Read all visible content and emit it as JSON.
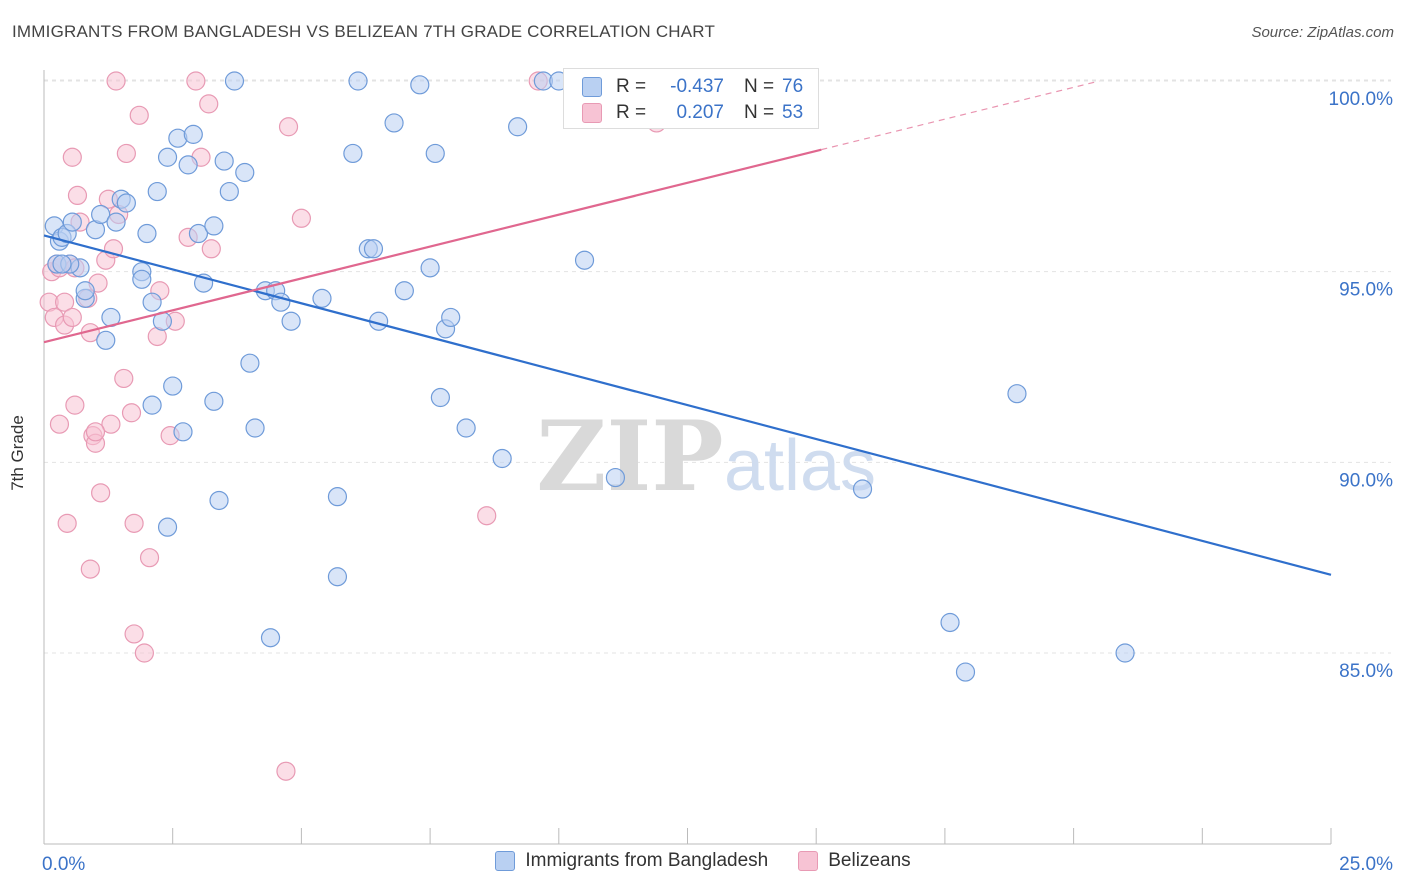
{
  "title": "IMMIGRANTS FROM BANGLADESH VS BELIZEAN 7TH GRADE CORRELATION CHART",
  "source": "Source: ZipAtlas.com",
  "watermark": {
    "zip": "ZIP",
    "atlas": "atlas"
  },
  "colors": {
    "blue_fill": "#b9d0f2",
    "blue_stroke": "#6f9bd9",
    "blue_line": "#2f6fcc",
    "pink_fill": "#f7c3d4",
    "pink_stroke": "#e89ab4",
    "pink_line": "#e0678f",
    "tick_label": "#3b73c8",
    "grid": "#e3e3e3"
  },
  "stats": {
    "rows": [
      {
        "r_label": "R =",
        "r_value": "-0.437",
        "n_label": "N =",
        "n_value": "76",
        "series": "blue"
      },
      {
        "r_label": "R =",
        "r_value": "0.207",
        "n_label": "N =",
        "n_value": "53",
        "series": "pink"
      }
    ]
  },
  "legend": {
    "blue_label": "Immigrants from Bangladesh",
    "pink_label": "Belizeans"
  },
  "chart_data": {
    "type": "scatter",
    "title": "IMMIGRANTS FROM BANGLADESH VS BELIZEAN 7TH GRADE CORRELATION CHART",
    "xlabel": "",
    "ylabel": "7th Grade",
    "xlim": [
      0,
      25
    ],
    "ylim": [
      80.5,
      101.0
    ],
    "x_tick_labels": [
      {
        "value": 0,
        "label": "0.0%"
      },
      {
        "value": 25,
        "label": "25.0%"
      }
    ],
    "y_ticks": [
      {
        "value": 85,
        "label": "85.0%"
      },
      {
        "value": 90,
        "label": "90.0%"
      },
      {
        "value": 95,
        "label": "95.0%"
      },
      {
        "value": 100,
        "label": "100.0%"
      }
    ],
    "x_minor_ticks": [
      2.5,
      5,
      7.5,
      10,
      12.5,
      15,
      17.5,
      20,
      22.5,
      25
    ],
    "series": [
      {
        "name": "Immigrants from Bangladesh",
        "color": "blue",
        "trend": {
          "x0": 0,
          "y0": 95.95,
          "x1": 25,
          "y1": 87.05
        },
        "points": [
          [
            0.2,
            96.2
          ],
          [
            0.3,
            95.8
          ],
          [
            0.35,
            95.9
          ],
          [
            0.45,
            96.0
          ],
          [
            0.55,
            96.3
          ],
          [
            0.25,
            95.2
          ],
          [
            0.7,
            95.1
          ],
          [
            0.5,
            95.2
          ],
          [
            0.8,
            94.3
          ],
          [
            0.8,
            94.5
          ],
          [
            1.0,
            96.1
          ],
          [
            1.1,
            96.5
          ],
          [
            1.2,
            93.2
          ],
          [
            1.3,
            93.8
          ],
          [
            1.4,
            96.3
          ],
          [
            1.5,
            96.9
          ],
          [
            1.6,
            96.8
          ],
          [
            1.9,
            95.0
          ],
          [
            1.9,
            94.8
          ],
          [
            2.0,
            96.0
          ],
          [
            2.1,
            91.5
          ],
          [
            2.1,
            94.2
          ],
          [
            2.2,
            97.1
          ],
          [
            2.3,
            93.7
          ],
          [
            2.4,
            88.3
          ],
          [
            2.4,
            98.0
          ],
          [
            2.5,
            92.0
          ],
          [
            2.6,
            98.5
          ],
          [
            2.7,
            90.8
          ],
          [
            2.8,
            97.8
          ],
          [
            2.9,
            98.6
          ],
          [
            3.0,
            96.0
          ],
          [
            3.1,
            94.7
          ],
          [
            3.3,
            96.2
          ],
          [
            3.3,
            91.6
          ],
          [
            3.4,
            89.0
          ],
          [
            3.5,
            97.9
          ],
          [
            3.6,
            97.1
          ],
          [
            3.7,
            100.0
          ],
          [
            3.9,
            97.6
          ],
          [
            4.0,
            92.6
          ],
          [
            4.1,
            90.9
          ],
          [
            4.3,
            94.5
          ],
          [
            4.4,
            85.4
          ],
          [
            4.5,
            94.5
          ],
          [
            4.6,
            94.2
          ],
          [
            4.8,
            93.7
          ],
          [
            5.4,
            94.3
          ],
          [
            5.7,
            89.1
          ],
          [
            5.7,
            87.0
          ],
          [
            6.0,
            98.1
          ],
          [
            6.1,
            100.0
          ],
          [
            6.3,
            95.6
          ],
          [
            6.4,
            95.6
          ],
          [
            6.5,
            93.7
          ],
          [
            6.8,
            98.9
          ],
          [
            7.0,
            94.5
          ],
          [
            7.3,
            99.9
          ],
          [
            7.5,
            95.1
          ],
          [
            7.6,
            98.1
          ],
          [
            7.7,
            91.7
          ],
          [
            7.8,
            93.5
          ],
          [
            7.9,
            93.8
          ],
          [
            8.2,
            90.9
          ],
          [
            8.9,
            90.1
          ],
          [
            9.2,
            98.8
          ],
          [
            9.7,
            100.0
          ],
          [
            10.0,
            100.0
          ],
          [
            10.5,
            95.3
          ],
          [
            11.1,
            89.6
          ],
          [
            15.9,
            89.3
          ],
          [
            17.6,
            85.8
          ],
          [
            17.9,
            84.5
          ],
          [
            18.9,
            91.8
          ],
          [
            21.0,
            85.0
          ],
          [
            0.35,
            95.2
          ]
        ]
      },
      {
        "name": "Belizeans",
        "color": "pink",
        "trend": {
          "x0": 0,
          "y0": 93.15,
          "x1": 15.1,
          "y1": 98.2
        },
        "trend_ext": {
          "x0": 15.1,
          "y0": 98.2,
          "x1": 20.5,
          "y1": 100.0
        },
        "points": [
          [
            0.1,
            94.2
          ],
          [
            0.2,
            93.8
          ],
          [
            0.15,
            95.0
          ],
          [
            0.3,
            95.1
          ],
          [
            0.3,
            91.0
          ],
          [
            0.4,
            94.2
          ],
          [
            0.4,
            93.6
          ],
          [
            0.45,
            88.4
          ],
          [
            0.5,
            95.2
          ],
          [
            0.55,
            93.8
          ],
          [
            0.55,
            98.0
          ],
          [
            0.6,
            91.5
          ],
          [
            0.65,
            97.0
          ],
          [
            0.7,
            96.3
          ],
          [
            0.85,
            94.3
          ],
          [
            0.9,
            87.2
          ],
          [
            0.9,
            93.4
          ],
          [
            0.95,
            90.7
          ],
          [
            1.0,
            90.5
          ],
          [
            1.05,
            94.7
          ],
          [
            1.1,
            89.2
          ],
          [
            1.2,
            95.3
          ],
          [
            1.25,
            96.9
          ],
          [
            1.3,
            91.0
          ],
          [
            1.35,
            95.6
          ],
          [
            1.4,
            100.0
          ],
          [
            1.45,
            96.5
          ],
          [
            1.55,
            92.2
          ],
          [
            1.6,
            98.1
          ],
          [
            1.7,
            91.3
          ],
          [
            1.75,
            88.4
          ],
          [
            1.75,
            85.5
          ],
          [
            1.85,
            99.1
          ],
          [
            1.95,
            85.0
          ],
          [
            2.05,
            87.5
          ],
          [
            2.2,
            93.3
          ],
          [
            2.25,
            94.5
          ],
          [
            2.45,
            90.7
          ],
          [
            2.55,
            93.7
          ],
          [
            2.95,
            100.0
          ],
          [
            3.05,
            98.0
          ],
          [
            3.2,
            99.4
          ],
          [
            3.25,
            95.6
          ],
          [
            4.7,
            81.9
          ],
          [
            4.75,
            98.8
          ],
          [
            5.0,
            96.4
          ],
          [
            8.6,
            88.6
          ],
          [
            9.6,
            100.0
          ],
          [
            11.9,
            98.9
          ],
          [
            0.25,
            95.2
          ],
          [
            0.6,
            95.1
          ],
          [
            1.0,
            90.8
          ],
          [
            2.8,
            95.9
          ]
        ]
      }
    ]
  }
}
